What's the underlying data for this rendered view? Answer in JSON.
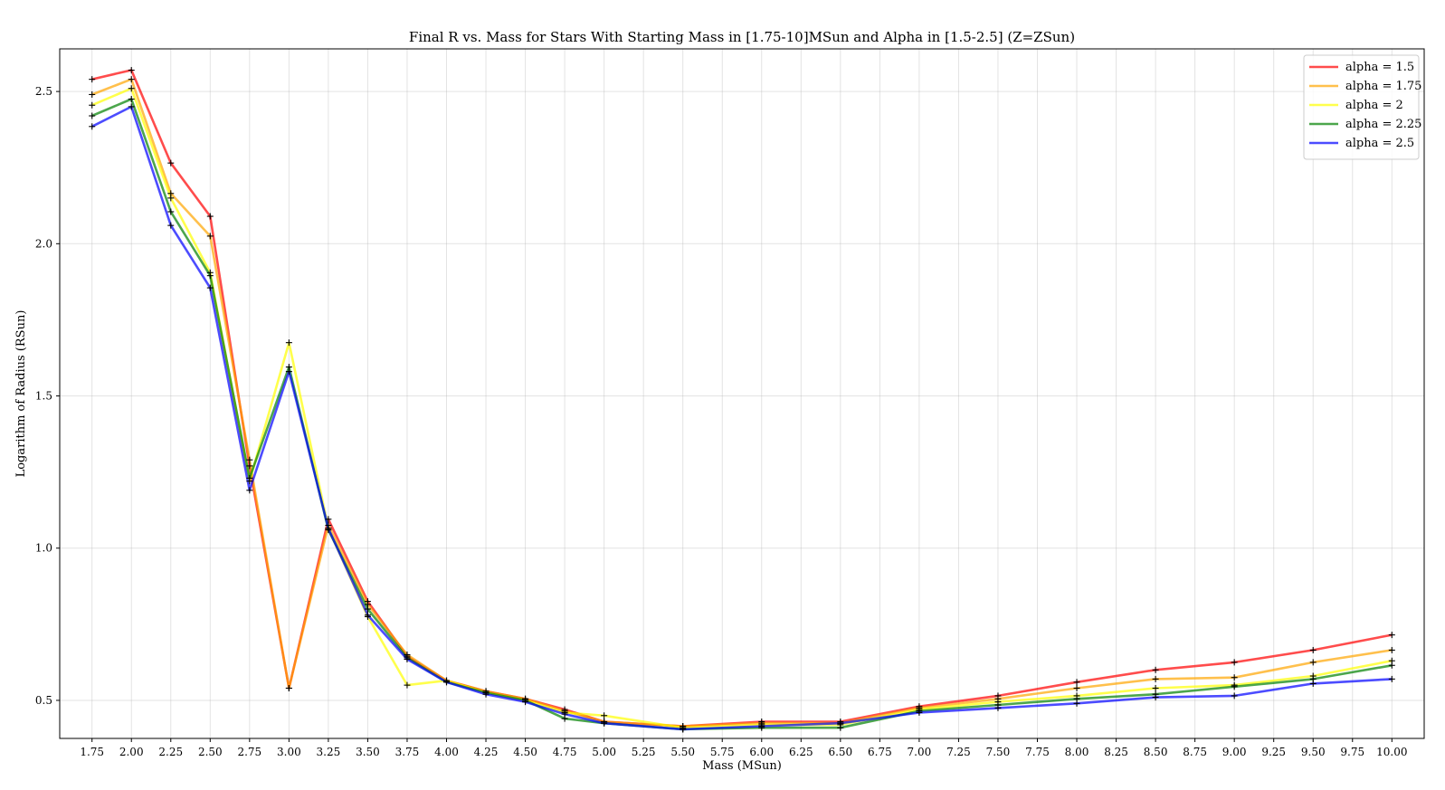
{
  "chart_data": {
    "type": "line",
    "title": "Final R vs. Mass for Stars With Starting Mass in [1.75-10]MSun and Alpha in [1.5-2.5] (Z=ZSun)",
    "xlabel": "Mass (MSun)",
    "ylabel": "Logarithm of Radius (RSun)",
    "x_tick_labels": [
      "1.75",
      "2.00",
      "2.25",
      "2.50",
      "2.75",
      "3.00",
      "3.25",
      "3.50",
      "3.75",
      "4.00",
      "4.25",
      "4.50",
      "4.75",
      "5.00",
      "5.25",
      "5.50",
      "5.75",
      "6.00",
      "6.25",
      "6.50",
      "6.75",
      "7.00",
      "7.25",
      "7.50",
      "7.75",
      "8.00",
      "8.25",
      "8.50",
      "8.75",
      "9.00",
      "9.25",
      "9.50",
      "9.75",
      "10.00"
    ],
    "y_tick_labels": [
      "0.5",
      "1.0",
      "1.5",
      "2.0",
      "2.5"
    ],
    "xlim": [
      1.545,
      10.205
    ],
    "ylim": [
      0.375,
      2.64
    ],
    "grid": true,
    "legend_position": "top-right",
    "x": [
      1.75,
      2.0,
      2.25,
      2.5,
      2.75,
      3.0,
      3.25,
      3.5,
      3.75,
      4.0,
      4.25,
      4.5,
      4.75,
      5.0,
      5.5,
      6.0,
      6.5,
      7.0,
      7.5,
      8.0,
      8.5,
      9.0,
      9.5,
      10.0
    ],
    "series": [
      {
        "name": "alpha = 1.5",
        "color": "#ff0000",
        "values": [
          2.54,
          2.57,
          2.265,
          2.09,
          1.27,
          0.54,
          1.095,
          0.825,
          0.645,
          0.565,
          0.53,
          0.505,
          0.47,
          0.43,
          0.415,
          0.43,
          0.43,
          0.48,
          0.515,
          0.56,
          0.6,
          0.625,
          0.665,
          0.715
        ]
      },
      {
        "name": "alpha = 1.75",
        "color": "#ffa500",
        "values": [
          2.49,
          2.54,
          2.165,
          2.025,
          1.29,
          0.54,
          1.075,
          0.815,
          0.65,
          0.565,
          0.53,
          0.505,
          0.465,
          0.43,
          0.415,
          0.425,
          0.425,
          0.475,
          0.505,
          0.54,
          0.57,
          0.575,
          0.625,
          0.665
        ]
      },
      {
        "name": "alpha = 2",
        "color": "#ffff00",
        "values": [
          2.455,
          2.51,
          2.15,
          1.905,
          1.22,
          1.675,
          1.065,
          0.775,
          0.55,
          0.565,
          0.525,
          0.5,
          0.46,
          0.45,
          0.41,
          0.42,
          0.42,
          0.47,
          0.495,
          0.515,
          0.54,
          0.55,
          0.58,
          0.63
        ]
      },
      {
        "name": "alpha = 2.25",
        "color": "#008000",
        "values": [
          2.42,
          2.475,
          2.105,
          1.895,
          1.23,
          1.595,
          1.06,
          0.8,
          0.64,
          0.56,
          0.525,
          0.5,
          0.44,
          0.425,
          0.405,
          0.41,
          0.41,
          0.465,
          0.485,
          0.505,
          0.52,
          0.545,
          0.57,
          0.615
        ]
      },
      {
        "name": "alpha = 2.5",
        "color": "#0000ff",
        "values": [
          2.385,
          2.45,
          2.06,
          1.855,
          1.19,
          1.58,
          1.065,
          0.78,
          0.635,
          0.56,
          0.52,
          0.495,
          0.455,
          0.425,
          0.405,
          0.415,
          0.425,
          0.46,
          0.475,
          0.49,
          0.51,
          0.515,
          0.555,
          0.57
        ]
      }
    ]
  }
}
